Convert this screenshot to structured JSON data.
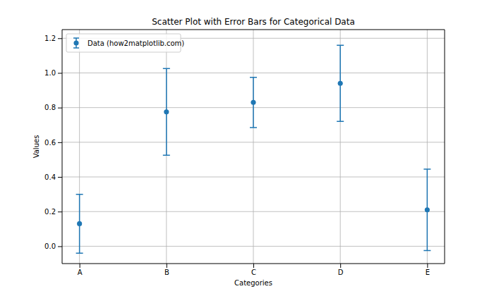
{
  "chart_data": {
    "type": "scatter",
    "title": "Scatter Plot with Error Bars for Categorical Data",
    "x_label": "Categories",
    "y_label": "Values",
    "categories": [
      "A",
      "B",
      "C",
      "D",
      "E"
    ],
    "series": [
      {
        "name": "Data (how2matplotlib.com)",
        "color": "#1f77b4",
        "marker": "circle",
        "values": [
          0.13,
          0.775,
          0.83,
          0.94,
          0.21
        ],
        "errors": [
          0.17,
          0.25,
          0.145,
          0.22,
          0.235
        ]
      }
    ],
    "ylim": [
      -0.1,
      1.25
    ],
    "yticks": [
      {
        "value": 0,
        "label": "0.0"
      },
      {
        "value": 0.2,
        "label": "0.2"
      },
      {
        "value": 0.4,
        "label": "0.4"
      },
      {
        "value": 0.6,
        "label": "0.6"
      },
      {
        "value": 0.8,
        "label": "0.8"
      },
      {
        "value": 1,
        "label": "1.0"
      },
      {
        "value": 1.2,
        "label": "1.2"
      }
    ],
    "grid": true,
    "legend": "upper left"
  }
}
